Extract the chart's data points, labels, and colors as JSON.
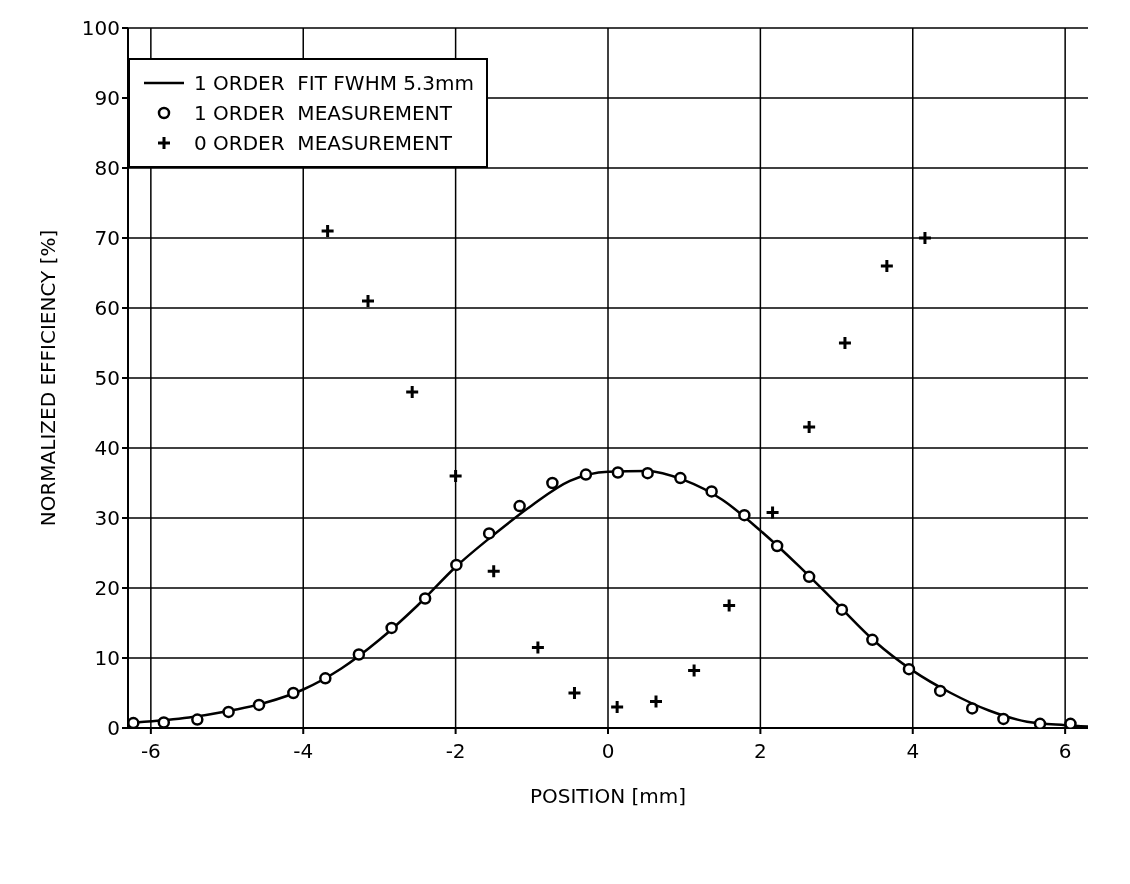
{
  "chart_data": {
    "type": "scatter",
    "xlabel": "POSITION [mm]",
    "ylabel": "NORMALIZED   EFFICIENCY [%]",
    "xlim": [
      -6.3,
      6.3
    ],
    "ylim": [
      0,
      100
    ],
    "xticks": [
      -6,
      -4,
      -2,
      0,
      2,
      4,
      6
    ],
    "yticks": [
      0,
      10,
      20,
      30,
      40,
      50,
      60,
      70,
      80,
      90,
      100
    ],
    "grid": true,
    "legend": "top left",
    "series": [
      {
        "name": "1 ORDER  FIT FWHM 5.3mm",
        "type": "line",
        "color": "#000000",
        "marker": "none",
        "line_style": "solid",
        "x": [
          -6.2,
          -5.5,
          -5,
          -4.5,
          -4,
          -3.5,
          -3,
          -2.5,
          -2,
          -1.5,
          -1,
          -0.5,
          0,
          0.5,
          1,
          1.5,
          2,
          2.5,
          3,
          3.5,
          4,
          4.5,
          5,
          5.5,
          6,
          6.3
        ],
        "values": [
          0.8,
          1.5,
          2.4,
          3.6,
          5.5,
          8.5,
          12.6,
          17.5,
          23,
          27.6,
          31.8,
          35.3,
          36.6,
          36.7,
          35.4,
          32.6,
          28.2,
          23.2,
          17.8,
          12.4,
          8.2,
          5,
          2.5,
          0.9,
          0.4,
          0.2
        ]
      },
      {
        "name": "1 ORDER  MEASUREMENT",
        "color": "#000000",
        "marker": "circle",
        "x": [
          -6.23,
          -5.83,
          -5.39,
          -4.98,
          -4.58,
          -4.13,
          -3.71,
          -3.27,
          -2.84,
          -2.4,
          -1.99,
          -1.56,
          -1.16,
          -0.73,
          -0.29,
          0.13,
          0.52,
          0.95,
          1.36,
          1.79,
          2.22,
          2.64,
          3.07,
          3.47,
          3.95,
          4.36,
          4.78,
          5.19,
          5.67,
          6.07
        ],
        "values": [
          0.7,
          0.8,
          1.2,
          2.3,
          3.3,
          5,
          7.1,
          10.5,
          14.3,
          18.5,
          23.3,
          27.8,
          31.7,
          35,
          36.2,
          36.5,
          36.4,
          35.7,
          33.8,
          30.4,
          26,
          21.6,
          16.9,
          12.6,
          8.4,
          5.3,
          2.8,
          1.3,
          0.6,
          0.6
        ]
      },
      {
        "name": "0 ORDER  MEASUREMENT",
        "color": "#000000",
        "marker": "cross",
        "x": [
          -3.68,
          -3.15,
          -2.57,
          -2,
          -1.5,
          -0.92,
          -0.44,
          0.12,
          0.63,
          1.13,
          1.59,
          2.16,
          2.64,
          3.11,
          3.66,
          4.16
        ],
        "values": [
          71,
          61,
          48,
          36,
          22.4,
          11.5,
          5,
          3,
          3.8,
          8.2,
          17.5,
          30.8,
          43,
          55,
          66,
          70
        ]
      }
    ]
  }
}
